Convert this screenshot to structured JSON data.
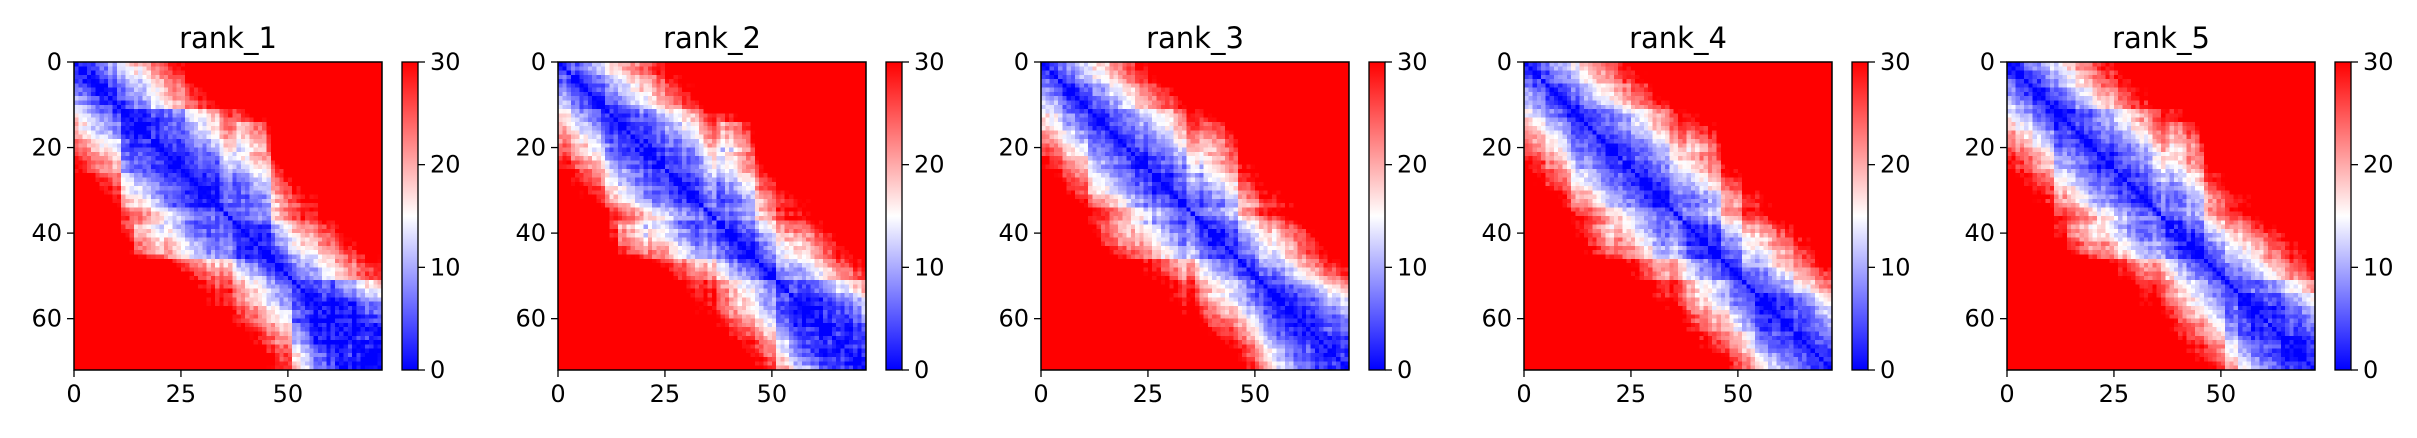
{
  "chart_data": {
    "type": "heatmap",
    "colormap": "bwr",
    "colormap_stops": [
      "#0000ff",
      "#ffffff",
      "#ff0000"
    ],
    "clim": [
      0,
      30
    ],
    "colorbar_ticks": [
      "0",
      "10",
      "20",
      "30"
    ],
    "matrix_size": 72,
    "xlim": [
      0,
      72
    ],
    "ylim": [
      72,
      0
    ],
    "x_ticks": [
      "0",
      "25",
      "50"
    ],
    "y_ticks": [
      "0",
      "20",
      "40",
      "60"
    ],
    "panels": [
      {
        "title": "rank_1"
      },
      {
        "title": "rank_2"
      },
      {
        "title": "rank_3"
      },
      {
        "title": "rank_4"
      },
      {
        "title": "rank_5"
      }
    ]
  }
}
